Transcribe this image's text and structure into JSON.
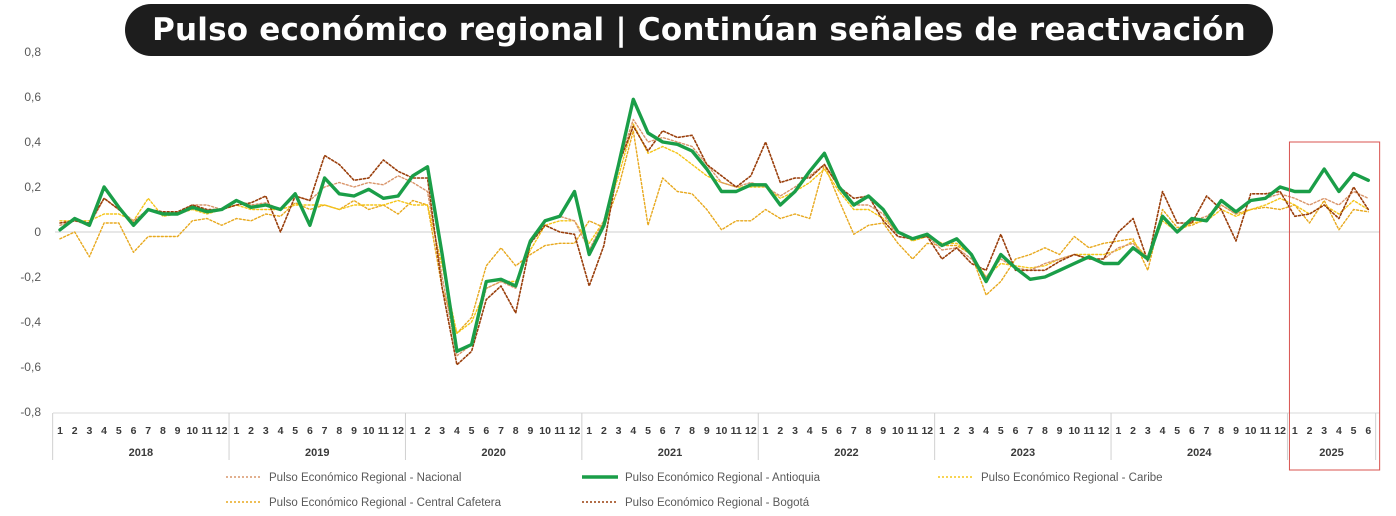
{
  "title": "Pulso económico regional | Continúan señales de reactivación",
  "colors": {
    "nacional": "#d9956a",
    "antioquia": "#1a9e48",
    "caribe": "#f5c518",
    "cafetera": "#e8a91e",
    "bogota": "#9a3f0c"
  },
  "chart_data": {
    "type": "line",
    "ylim": [
      -0.8,
      0.8
    ],
    "yticks": [
      "0,8",
      "0,6",
      "0,4",
      "0,2",
      "0",
      "-0,2",
      "-0,4",
      "-0,6",
      "-0,8"
    ],
    "ytick_values": [
      0.8,
      0.6,
      0.4,
      0.2,
      0,
      -0.2,
      -0.4,
      -0.6,
      -0.8
    ],
    "years": [
      {
        "label": "2018",
        "months": 12
      },
      {
        "label": "2019",
        "months": 12
      },
      {
        "label": "2020",
        "months": 12
      },
      {
        "label": "2021",
        "months": 12
      },
      {
        "label": "2022",
        "months": 12
      },
      {
        "label": "2023",
        "months": 12
      },
      {
        "label": "2024",
        "months": 12
      },
      {
        "label": "2025",
        "months": 6
      }
    ],
    "highlight": "2025",
    "series": [
      {
        "name": "Pulso Económico Regional - Nacional",
        "key": "nacional",
        "values": [
          0.03,
          0.05,
          0.03,
          0.15,
          0.1,
          0.05,
          0.1,
          0.08,
          0.08,
          0.12,
          0.12,
          0.1,
          0.14,
          0.12,
          0.13,
          0.1,
          0.16,
          0.14,
          0.2,
          0.22,
          0.2,
          0.22,
          0.21,
          0.25,
          0.22,
          0.18,
          -0.2,
          -0.55,
          -0.5,
          -0.25,
          -0.22,
          -0.25,
          -0.05,
          0.05,
          0.07,
          0.05,
          -0.08,
          0.05,
          0.3,
          0.5,
          0.4,
          0.42,
          0.4,
          0.38,
          0.3,
          0.22,
          0.2,
          0.22,
          0.2,
          0.16,
          0.2,
          0.25,
          0.3,
          0.2,
          0.12,
          0.12,
          0.08,
          -0.02,
          -0.03,
          -0.02,
          -0.08,
          -0.07,
          -0.12,
          -0.2,
          -0.12,
          -0.16,
          -0.17,
          -0.14,
          -0.12,
          -0.1,
          -0.12,
          -0.12,
          -0.07,
          -0.05,
          -0.12,
          0.07,
          0.0,
          0.05,
          0.07,
          0.12,
          0.08,
          0.14,
          0.15,
          0.17,
          0.15,
          0.12,
          0.15,
          0.12,
          0.18,
          0.15
        ]
      },
      {
        "name": "Pulso Económico Regional - Antioquia",
        "key": "antioquia",
        "values": [
          0.01,
          0.06,
          0.03,
          0.2,
          0.11,
          0.03,
          0.1,
          0.08,
          0.08,
          0.11,
          0.09,
          0.1,
          0.14,
          0.11,
          0.12,
          0.1,
          0.17,
          0.03,
          0.24,
          0.17,
          0.16,
          0.19,
          0.15,
          0.16,
          0.25,
          0.29,
          -0.1,
          -0.53,
          -0.5,
          -0.22,
          -0.21,
          -0.24,
          -0.04,
          0.05,
          0.07,
          0.18,
          -0.1,
          0.03,
          0.3,
          0.59,
          0.44,
          0.4,
          0.39,
          0.36,
          0.28,
          0.18,
          0.18,
          0.21,
          0.21,
          0.12,
          0.18,
          0.27,
          0.35,
          0.2,
          0.12,
          0.16,
          0.1,
          0.0,
          -0.03,
          -0.01,
          -0.06,
          -0.03,
          -0.1,
          -0.22,
          -0.1,
          -0.16,
          -0.21,
          -0.2,
          -0.17,
          -0.14,
          -0.11,
          -0.14,
          -0.14,
          -0.07,
          -0.12,
          0.07,
          0.0,
          0.06,
          0.05,
          0.14,
          0.09,
          0.14,
          0.15,
          0.2,
          0.18,
          0.18,
          0.28,
          0.18,
          0.26,
          0.23
        ]
      },
      {
        "name": "Pulso Económico Regional - Caribe",
        "key": "caribe",
        "values": [
          0.05,
          0.05,
          0.05,
          0.08,
          0.08,
          0.05,
          0.15,
          0.07,
          0.08,
          0.1,
          0.08,
          0.1,
          0.12,
          0.1,
          0.1,
          0.1,
          0.12,
          0.12,
          0.12,
          0.1,
          0.12,
          0.12,
          0.12,
          0.14,
          0.12,
          0.12,
          -0.15,
          -0.45,
          -0.4,
          -0.25,
          -0.22,
          -0.22,
          -0.08,
          0.03,
          0.05,
          0.05,
          -0.05,
          0.05,
          0.25,
          0.48,
          0.35,
          0.38,
          0.35,
          0.3,
          0.25,
          0.22,
          0.2,
          0.2,
          0.2,
          0.15,
          0.18,
          0.22,
          0.28,
          0.18,
          0.1,
          0.1,
          0.06,
          0.0,
          -0.04,
          -0.02,
          -0.05,
          -0.05,
          -0.1,
          -0.2,
          -0.14,
          -0.15,
          -0.16,
          -0.15,
          -0.12,
          -0.1,
          -0.1,
          -0.1,
          -0.08,
          -0.04,
          -0.12,
          0.05,
          0.0,
          0.04,
          0.05,
          0.1,
          0.07,
          0.1,
          0.12,
          0.15,
          0.12,
          0.08,
          0.12,
          0.08,
          0.14,
          0.1
        ]
      },
      {
        "name": "Pulso Económico Regional - Central Cafetera",
        "key": "cafetera",
        "values": [
          -0.03,
          0.0,
          -0.11,
          0.04,
          0.04,
          -0.09,
          -0.02,
          -0.02,
          -0.02,
          0.05,
          0.06,
          0.03,
          0.06,
          0.05,
          0.08,
          0.07,
          0.13,
          0.1,
          0.12,
          0.1,
          0.14,
          0.1,
          0.12,
          0.08,
          0.14,
          0.12,
          -0.25,
          -0.45,
          -0.38,
          -0.15,
          -0.07,
          -0.15,
          -0.1,
          -0.06,
          -0.05,
          -0.05,
          0.05,
          0.02,
          0.2,
          0.45,
          0.03,
          0.24,
          0.18,
          0.17,
          0.1,
          0.01,
          0.05,
          0.05,
          0.1,
          0.06,
          0.08,
          0.06,
          0.3,
          0.14,
          -0.01,
          0.03,
          0.04,
          -0.05,
          -0.12,
          -0.05,
          -0.06,
          -0.06,
          -0.1,
          -0.28,
          -0.22,
          -0.12,
          -0.1,
          -0.07,
          -0.1,
          -0.02,
          -0.07,
          -0.05,
          -0.04,
          -0.03,
          -0.17,
          0.1,
          0.02,
          0.03,
          0.06,
          0.12,
          0.08,
          0.1,
          0.11,
          0.1,
          0.12,
          0.04,
          0.14,
          0.01,
          0.1,
          0.09
        ]
      },
      {
        "name": "Pulso Económico Regional - Bogotá",
        "key": "bogota",
        "values": [
          0.04,
          0.05,
          0.04,
          0.15,
          0.1,
          0.04,
          0.1,
          0.09,
          0.09,
          0.12,
          0.1,
          0.1,
          0.12,
          0.13,
          0.16,
          0.0,
          0.16,
          0.14,
          0.34,
          0.3,
          0.23,
          0.24,
          0.32,
          0.27,
          0.24,
          0.24,
          -0.25,
          -0.59,
          -0.53,
          -0.3,
          -0.24,
          -0.36,
          -0.05,
          0.03,
          0.0,
          -0.01,
          -0.24,
          -0.06,
          0.3,
          0.47,
          0.36,
          0.45,
          0.42,
          0.43,
          0.3,
          0.25,
          0.2,
          0.25,
          0.4,
          0.22,
          0.24,
          0.24,
          0.3,
          0.2,
          0.15,
          0.16,
          0.05,
          -0.02,
          -0.03,
          -0.02,
          -0.12,
          -0.07,
          -0.14,
          -0.17,
          -0.01,
          -0.17,
          -0.17,
          -0.17,
          -0.13,
          -0.1,
          -0.12,
          -0.12,
          0.0,
          0.06,
          -0.13,
          0.18,
          0.04,
          0.04,
          0.16,
          0.1,
          -0.04,
          0.17,
          0.17,
          0.18,
          0.07,
          0.08,
          0.12,
          0.06,
          0.2,
          0.1
        ]
      }
    ],
    "legend": [
      "Pulso Económico Regional - Nacional",
      "Pulso Económico Regional - Antioquia",
      "Pulso Económico Regional - Caribe",
      "Pulso Económico Regional - Central Cafetera",
      "Pulso Económico Regional - Bogotá"
    ],
    "legend_position": "bottom"
  }
}
